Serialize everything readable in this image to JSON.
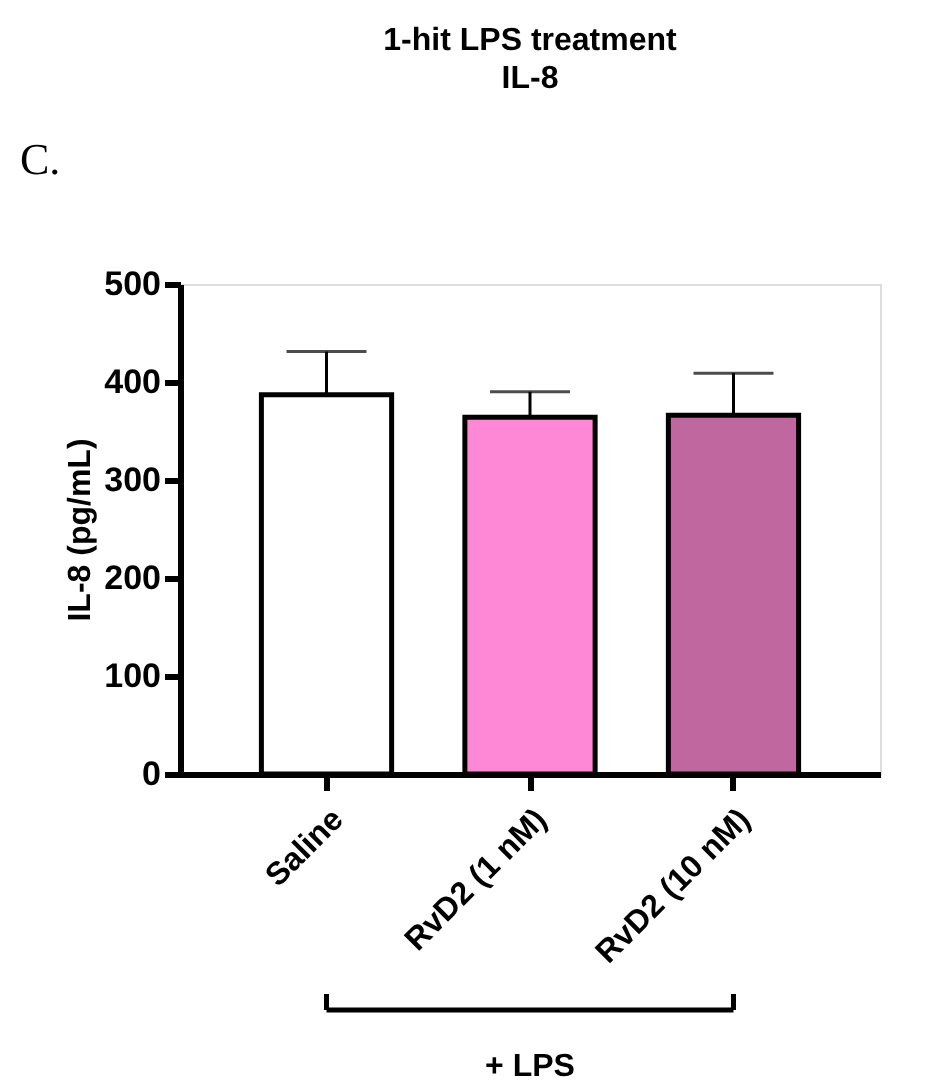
{
  "chart_data": {
    "type": "bar",
    "title": "1-hit LPS treatment",
    "subtitle": "IL-8",
    "ylabel": "IL-8 (pg/mL)",
    "categories": [
      "Saline",
      "RvD2 (1 nM)",
      "RvD2 (10 nM)"
    ],
    "values": [
      387,
      364,
      366
    ],
    "colors": [
      "#ffffff",
      "#ff88d6",
      "#c067a0"
    ],
    "errors": [
      [
        387,
        431
      ],
      [
        364,
        390
      ],
      [
        366,
        409
      ]
    ],
    "ylim": [
      0,
      500
    ],
    "yticks": [
      0,
      100,
      200,
      300,
      400,
      500
    ],
    "grid": false,
    "annotations": [
      "C.",
      "+ LPS"
    ]
  }
}
